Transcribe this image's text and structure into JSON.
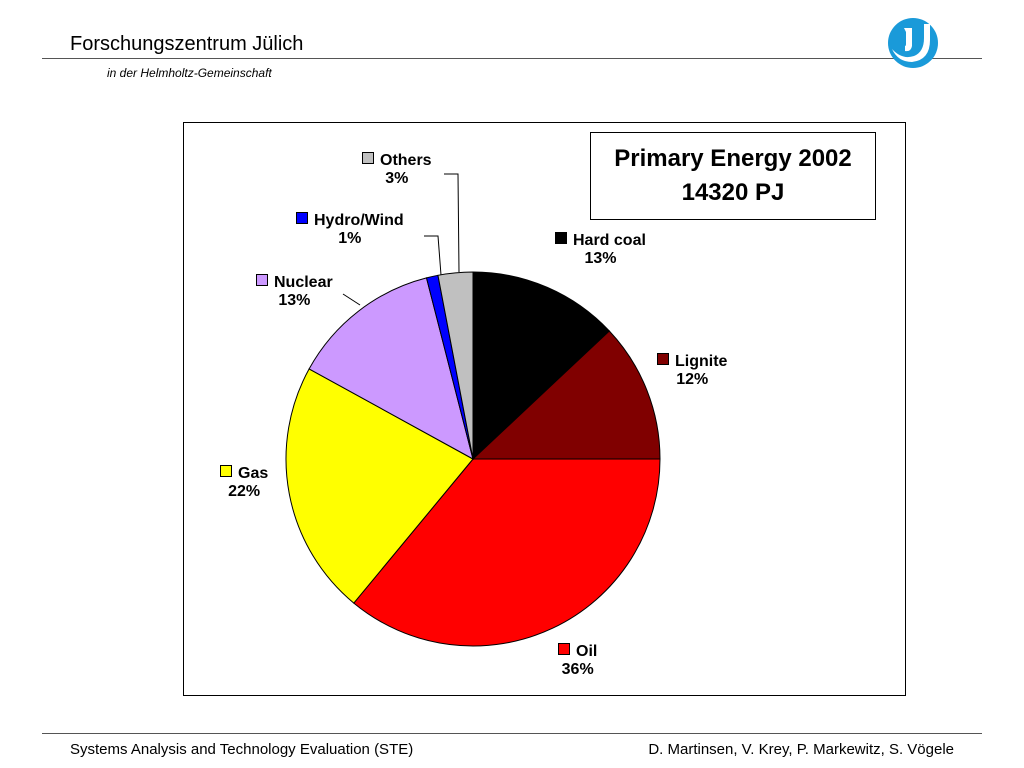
{
  "header": {
    "org_name": "Forschungszentrum Jülich",
    "org_subtitle": "in der Helmholtz-Gemeinschaft",
    "logo_icon": "fz-juelich-logo-icon",
    "logo_color": "#1a9ad9"
  },
  "chart_data": {
    "type": "pie",
    "title_line1": "Primary Energy 2002",
    "title_line2": "14320 PJ",
    "slices": [
      {
        "name": "Hard coal",
        "value": 13,
        "label": "13%",
        "color": "#000000"
      },
      {
        "name": "Lignite",
        "value": 12,
        "label": "12%",
        "color": "#800000"
      },
      {
        "name": "Oil",
        "value": 36,
        "label": "36%",
        "color": "#ff0000"
      },
      {
        "name": "Gas",
        "value": 22,
        "label": "22%",
        "color": "#ffff00"
      },
      {
        "name": "Nuclear",
        "value": 13,
        "label": "13%",
        "color": "#cc99ff"
      },
      {
        "name": "Hydro/Wind",
        "value": 1,
        "label": "1%",
        "color": "#0000ff"
      },
      {
        "name": "Others",
        "value": 3,
        "label": "3%",
        "color": "#c0c0c0"
      }
    ]
  },
  "footer": {
    "left": "Systems Analysis and Technology Evaluation (STE)",
    "right": "D. Martinsen, V. Krey, P. Markewitz, S. Vögele"
  }
}
